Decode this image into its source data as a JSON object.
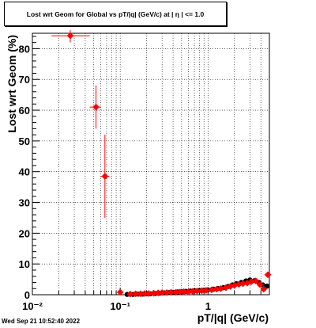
{
  "title": "Lost wrt Geom for Global vs pT/|q| (GeV/c) at |  η | <= 1.0",
  "timestamp": "Wed Sep 21 10:52:40 2022",
  "chart_data": {
    "type": "scatter",
    "title": "Lost wrt Geom for Global vs pT/|q| (GeV/c) at |  η | <= 1.0",
    "xlabel": "pT/|q| (GeV/c)",
    "ylabel": "Lost wrt Geom (%)",
    "xscale": "log",
    "xlim": [
      0.01,
      5.0
    ],
    "ylim": [
      0,
      85
    ],
    "grid": true,
    "x_tick_labels": [
      {
        "value": 0.01,
        "label": "10⁻²"
      },
      {
        "value": 0.1,
        "label": "10⁻¹"
      },
      {
        "value": 1,
        "label": "1"
      }
    ],
    "y_tick_labels": [
      "0",
      "10",
      "20",
      "30",
      "40",
      "50",
      "60",
      "70",
      "80"
    ],
    "series": [
      {
        "marker": "circle",
        "color": "#000000",
        "points": [
          {
            "x": 0.12,
            "y": 0.1
          },
          {
            "x": 0.14,
            "y": 0.1
          },
          {
            "x": 0.16,
            "y": 0.2
          },
          {
            "x": 0.18,
            "y": 0.2
          },
          {
            "x": 0.2,
            "y": 0.3
          },
          {
            "x": 0.22,
            "y": 0.3
          },
          {
            "x": 0.25,
            "y": 0.4
          },
          {
            "x": 0.28,
            "y": 0.5
          },
          {
            "x": 0.32,
            "y": 0.6
          },
          {
            "x": 0.36,
            "y": 0.7
          },
          {
            "x": 0.4,
            "y": 0.8
          },
          {
            "x": 0.45,
            "y": 0.9
          },
          {
            "x": 0.5,
            "y": 1.0
          },
          {
            "x": 0.56,
            "y": 1.1
          },
          {
            "x": 0.63,
            "y": 1.2
          },
          {
            "x": 0.7,
            "y": 1.3
          },
          {
            "x": 0.8,
            "y": 1.4
          },
          {
            "x": 0.9,
            "y": 1.5
          },
          {
            "x": 1.0,
            "y": 1.6
          },
          {
            "x": 1.15,
            "y": 1.8
          },
          {
            "x": 1.3,
            "y": 2.0
          },
          {
            "x": 1.5,
            "y": 2.3
          },
          {
            "x": 1.7,
            "y": 2.7
          },
          {
            "x": 1.9,
            "y": 3.2
          },
          {
            "x": 2.1,
            "y": 3.6
          },
          {
            "x": 2.4,
            "y": 4.0
          },
          {
            "x": 2.7,
            "y": 4.5
          },
          {
            "x": 3.0,
            "y": 4.8
          },
          {
            "x": 3.4,
            "y": 4.6
          },
          {
            "x": 3.8,
            "y": 4.0
          },
          {
            "x": 4.2,
            "y": 3.2
          },
          {
            "x": 4.7,
            "y": 2.8
          }
        ]
      },
      {
        "marker": "diamond",
        "color": "#ff0000",
        "points": [
          {
            "x": 0.027,
            "y": 84.2,
            "xerr": [
              0.0165,
              0.045
            ],
            "yerr": [
              82.0,
              86.0
            ]
          },
          {
            "x": 0.053,
            "y": 61.0,
            "xerr": [
              0.045,
              0.06
            ],
            "yerr": [
              54.0,
              68.0
            ]
          },
          {
            "x": 0.067,
            "y": 38.5,
            "xerr": [
              0.06,
              0.075
            ],
            "yerr": [
              25.0,
              52.0
            ]
          },
          {
            "x": 0.1,
            "y": 0.8
          },
          {
            "x": 0.13,
            "y": 0.2
          },
          {
            "x": 0.15,
            "y": 0.3
          },
          {
            "x": 0.17,
            "y": 0.3
          },
          {
            "x": 0.19,
            "y": 0.4
          },
          {
            "x": 0.21,
            "y": 0.4
          },
          {
            "x": 0.24,
            "y": 0.5
          },
          {
            "x": 0.27,
            "y": 0.6
          },
          {
            "x": 0.3,
            "y": 0.7
          },
          {
            "x": 0.34,
            "y": 0.7
          },
          {
            "x": 0.38,
            "y": 0.8
          },
          {
            "x": 0.43,
            "y": 0.8
          },
          {
            "x": 0.48,
            "y": 0.9
          },
          {
            "x": 0.53,
            "y": 1.0
          },
          {
            "x": 0.6,
            "y": 1.0
          },
          {
            "x": 0.67,
            "y": 1.1
          },
          {
            "x": 0.75,
            "y": 1.2
          },
          {
            "x": 0.85,
            "y": 1.3
          },
          {
            "x": 0.95,
            "y": 1.4
          },
          {
            "x": 1.1,
            "y": 1.6
          },
          {
            "x": 1.25,
            "y": 1.8
          },
          {
            "x": 1.4,
            "y": 2.0
          },
          {
            "x": 1.6,
            "y": 2.3
          },
          {
            "x": 1.8,
            "y": 2.7
          },
          {
            "x": 2.0,
            "y": 3.0
          },
          {
            "x": 2.25,
            "y": 3.4
          },
          {
            "x": 2.5,
            "y": 3.6
          },
          {
            "x": 2.8,
            "y": 3.8
          },
          {
            "x": 3.1,
            "y": 4.2
          },
          {
            "x": 3.5,
            "y": 4.5
          },
          {
            "x": 3.9,
            "y": 3.3
          },
          {
            "x": 4.3,
            "y": 1.8
          },
          {
            "x": 4.8,
            "y": 6.5
          }
        ]
      }
    ]
  }
}
